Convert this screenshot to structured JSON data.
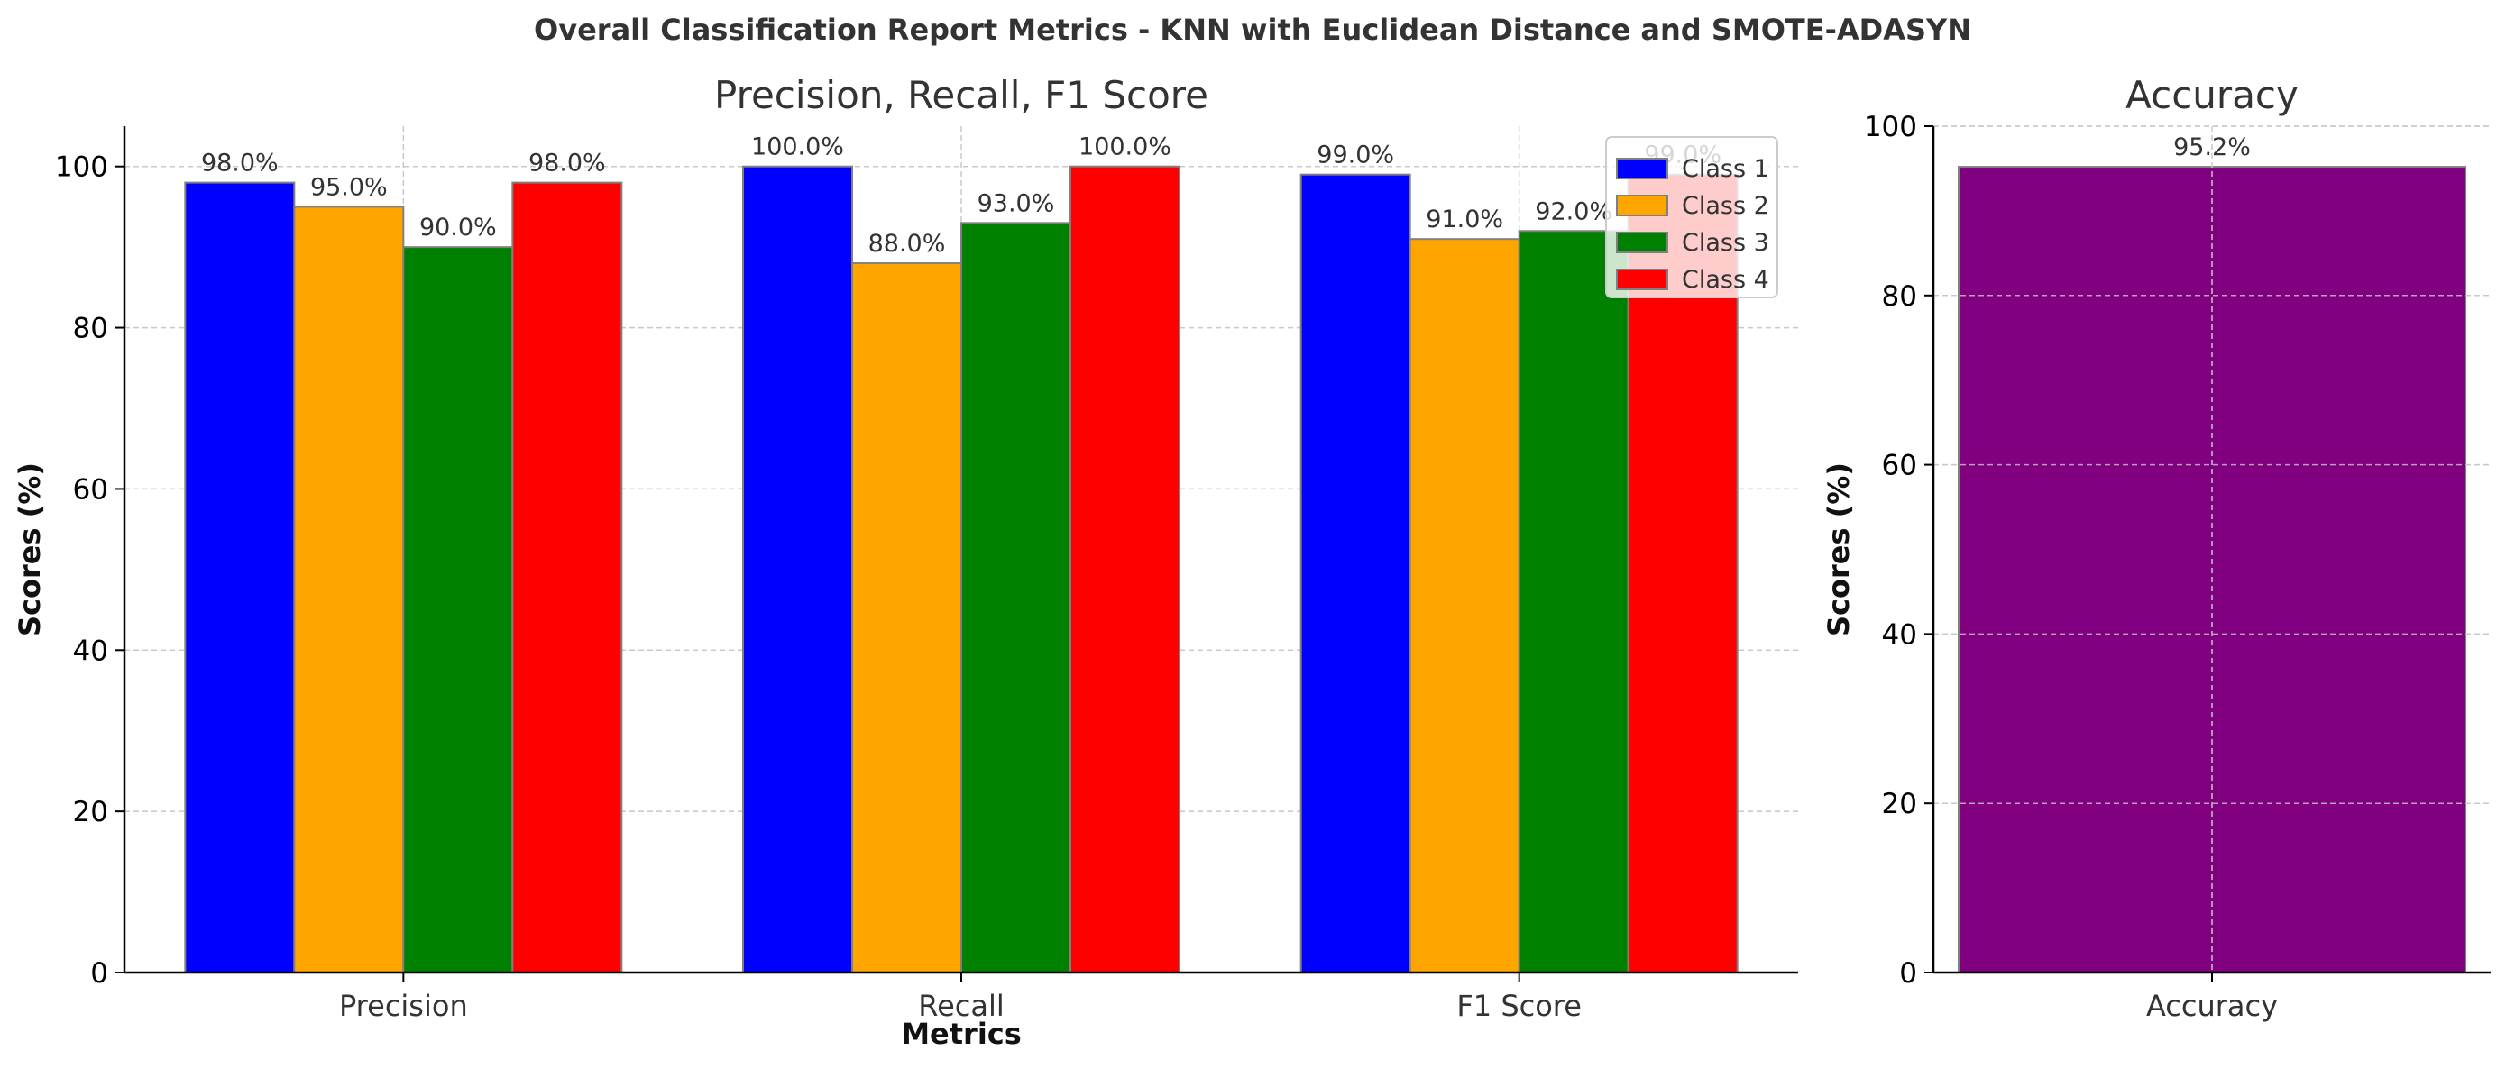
{
  "figure": {
    "suptitle": "Overall Classification Report Metrics - KNN with Euclidean Distance and SMOTE-ADASYN"
  },
  "colors": {
    "class_1": "#0000ff",
    "class_2": "#ffa500",
    "class_3": "#008000",
    "class_4": "#ff0000",
    "accuracy": "#800080",
    "bar_edge": "#808080",
    "grid": "#c8c8c8",
    "text": "#333333"
  },
  "chart_data": [
    {
      "type": "bar",
      "title": "Precision, Recall, F1 Score",
      "xlabel": "Metrics",
      "ylabel": "Scores (%)",
      "categories": [
        "Precision",
        "Recall",
        "F1 Score"
      ],
      "series": [
        {
          "name": "Class 1",
          "color": "#0000ff",
          "values": [
            98,
            100,
            99
          ],
          "labels": [
            "98.0%",
            "100.0%",
            "99.0%"
          ]
        },
        {
          "name": "Class 2",
          "color": "#ffa500",
          "values": [
            95,
            88,
            91
          ],
          "labels": [
            "95.0%",
            "88.0%",
            "91.0%"
          ]
        },
        {
          "name": "Class 3",
          "color": "#008000",
          "values": [
            90,
            93,
            92
          ],
          "labels": [
            "90.0%",
            "93.0%",
            "92.0%"
          ]
        },
        {
          "name": "Class 4",
          "color": "#ff0000",
          "values": [
            98,
            100,
            99
          ],
          "labels": [
            "98.0%",
            "100.0%",
            "99.0%"
          ]
        }
      ],
      "ylim": [
        0,
        105
      ],
      "yticks": [
        0,
        20,
        40,
        60,
        80,
        100
      ],
      "grid": true,
      "legend": "top-right"
    },
    {
      "type": "bar",
      "title": "Accuracy",
      "xlabel": "",
      "ylabel": "Scores (%)",
      "categories": [
        "Accuracy"
      ],
      "series": [
        {
          "color": "#800080",
          "values": [
            95.2
          ],
          "labels": [
            "95.2%"
          ]
        }
      ],
      "ylim": [
        0,
        100
      ],
      "yticks": [
        0,
        20,
        40,
        60,
        80,
        100
      ],
      "grid": true
    }
  ]
}
